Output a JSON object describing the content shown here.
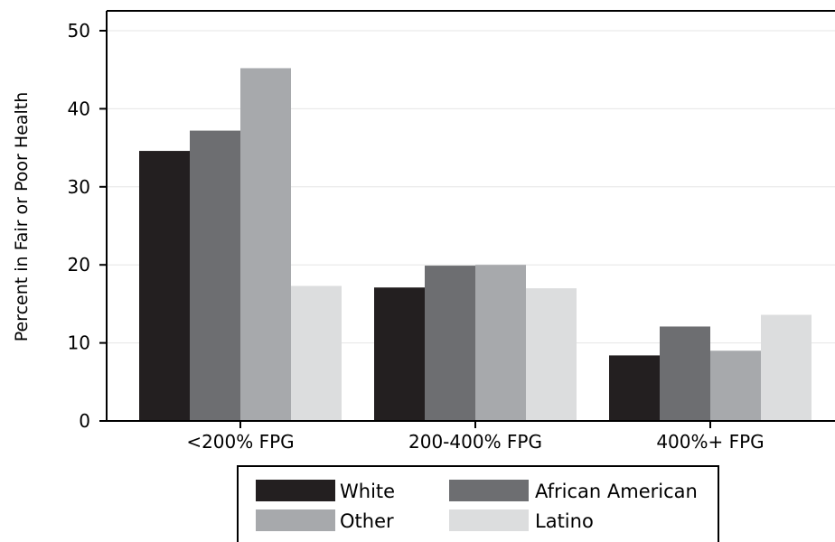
{
  "chart_data": {
    "type": "bar",
    "categories": [
      "<200% FPG",
      "200-400% FPG",
      "400%+ FPG"
    ],
    "series": [
      {
        "name": "White",
        "color": "#231f20",
        "values": [
          34.6,
          17.1,
          8.4
        ]
      },
      {
        "name": "African American",
        "color": "#6d6e71",
        "values": [
          37.2,
          19.9,
          12.1
        ]
      },
      {
        "name": "Other",
        "color": "#a7a9ac",
        "values": [
          45.2,
          20.0,
          9.0
        ]
      },
      {
        "name": "Latino",
        "color": "#dcddde",
        "values": [
          17.3,
          17.0,
          13.6
        ]
      }
    ],
    "ylabel": "Percent in Fair or Poor Health",
    "xlabel": "",
    "ylim": [
      0,
      50
    ],
    "yticks": [
      0,
      10,
      20,
      30,
      40,
      50
    ],
    "grid": true,
    "legend_position": "bottom"
  }
}
